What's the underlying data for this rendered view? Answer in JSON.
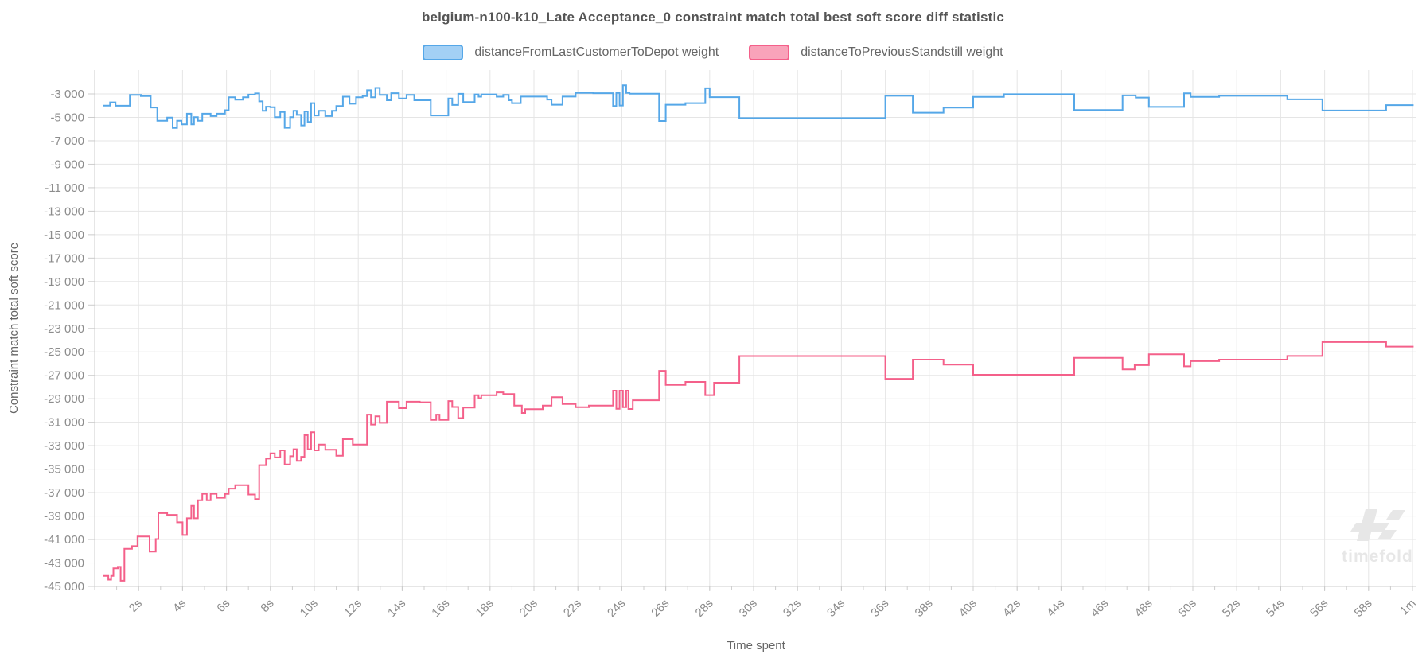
{
  "title": "belgium-n100-k10_Late Acceptance_0 constraint match total best soft score diff statistic",
  "legend": [
    {
      "label": "distanceFromLastCustomerToDepot weight",
      "fill": "#a3d0f5",
      "stroke": "#55a7e8"
    },
    {
      "label": "distanceToPreviousStandstill weight",
      "fill": "#f9a3ba",
      "stroke": "#f4608a"
    }
  ],
  "axes": {
    "y_label": "Constraint match total soft score",
    "x_label": "Time spent",
    "y_ticks": [
      {
        "v": -3000,
        "label": "-3 000"
      },
      {
        "v": -5000,
        "label": "-5 000"
      },
      {
        "v": -7000,
        "label": "-7 000"
      },
      {
        "v": -9000,
        "label": "-9 000"
      },
      {
        "v": -11000,
        "label": "-11 000"
      },
      {
        "v": -13000,
        "label": "-13 000"
      },
      {
        "v": -15000,
        "label": "-15 000"
      },
      {
        "v": -17000,
        "label": "-17 000"
      },
      {
        "v": -19000,
        "label": "-19 000"
      },
      {
        "v": -21000,
        "label": "-21 000"
      },
      {
        "v": -23000,
        "label": "-23 000"
      },
      {
        "v": -25000,
        "label": "-25 000"
      },
      {
        "v": -27000,
        "label": "-27 000"
      },
      {
        "v": -29000,
        "label": "-29 000"
      },
      {
        "v": -31000,
        "label": "-31 000"
      },
      {
        "v": -33000,
        "label": "-33 000"
      },
      {
        "v": -35000,
        "label": "-35 000"
      },
      {
        "v": -37000,
        "label": "-37 000"
      },
      {
        "v": -39000,
        "label": "-39 000"
      },
      {
        "v": -41000,
        "label": "-41 000"
      },
      {
        "v": -43000,
        "label": "-43 000"
      },
      {
        "v": -45000,
        "label": "-45 000"
      }
    ],
    "x_ticks": [
      {
        "s": 2,
        "label": "2s"
      },
      {
        "s": 4,
        "label": "4s"
      },
      {
        "s": 6,
        "label": "6s"
      },
      {
        "s": 8,
        "label": "8s"
      },
      {
        "s": 10,
        "label": "10s"
      },
      {
        "s": 12,
        "label": "12s"
      },
      {
        "s": 14,
        "label": "14s"
      },
      {
        "s": 16,
        "label": "16s"
      },
      {
        "s": 18,
        "label": "18s"
      },
      {
        "s": 20,
        "label": "20s"
      },
      {
        "s": 22,
        "label": "22s"
      },
      {
        "s": 24,
        "label": "24s"
      },
      {
        "s": 26,
        "label": "26s"
      },
      {
        "s": 28,
        "label": "28s"
      },
      {
        "s": 30,
        "label": "30s"
      },
      {
        "s": 32,
        "label": "32s"
      },
      {
        "s": 34,
        "label": "34s"
      },
      {
        "s": 36,
        "label": "36s"
      },
      {
        "s": 38,
        "label": "38s"
      },
      {
        "s": 40,
        "label": "40s"
      },
      {
        "s": 42,
        "label": "42s"
      },
      {
        "s": 44,
        "label": "44s"
      },
      {
        "s": 46,
        "label": "46s"
      },
      {
        "s": 48,
        "label": "48s"
      },
      {
        "s": 50,
        "label": "50s"
      },
      {
        "s": 52,
        "label": "52s"
      },
      {
        "s": 54,
        "label": "54s"
      },
      {
        "s": 56,
        "label": "56s"
      },
      {
        "s": 58,
        "label": "58s"
      },
      {
        "s": 60,
        "label": "1m"
      }
    ]
  },
  "watermark": "timefold",
  "colors": {
    "grid": "#e5e5e5",
    "axis": "#cccccc",
    "tick_text": "#8c8c8c",
    "axis_title": "#666666",
    "watermark": "#e7e7e7"
  },
  "chart_data": {
    "type": "line",
    "step": "after",
    "title": "belgium-n100-k10_Late Acceptance_0 constraint match total best soft score diff statistic",
    "xlabel": "Time spent",
    "ylabel": "Constraint match total soft score",
    "x_unit": "seconds",
    "xlim": [
      0,
      60.2
    ],
    "ylim": [
      -45000,
      -1000
    ],
    "y_tick_step": 2000,
    "grid": true,
    "legend_position": "top",
    "series": [
      {
        "name": "distanceFromLastCustomerToDepot weight",
        "color": "#55a7e8",
        "points": [
          [
            0.4,
            -4000
          ],
          [
            0.7,
            -3720
          ],
          [
            0.95,
            -4010
          ],
          [
            1.6,
            -3090
          ],
          [
            2.1,
            -3180
          ],
          [
            2.55,
            -4160
          ],
          [
            2.85,
            -5290
          ],
          [
            3.3,
            -5020
          ],
          [
            3.55,
            -5900
          ],
          [
            3.75,
            -5290
          ],
          [
            3.95,
            -5590
          ],
          [
            4.2,
            -4690
          ],
          [
            4.4,
            -5590
          ],
          [
            4.52,
            -4990
          ],
          [
            4.7,
            -5290
          ],
          [
            4.9,
            -4690
          ],
          [
            5.28,
            -4890
          ],
          [
            5.55,
            -4690
          ],
          [
            5.93,
            -4390
          ],
          [
            6.1,
            -3290
          ],
          [
            6.4,
            -3490
          ],
          [
            6.75,
            -3290
          ],
          [
            7.0,
            -3060
          ],
          [
            7.3,
            -2960
          ],
          [
            7.49,
            -3640
          ],
          [
            7.65,
            -4440
          ],
          [
            7.8,
            -4090
          ],
          [
            8.0,
            -4140
          ],
          [
            8.2,
            -4990
          ],
          [
            8.45,
            -4540
          ],
          [
            8.65,
            -5890
          ],
          [
            8.9,
            -4990
          ],
          [
            9.05,
            -4440
          ],
          [
            9.2,
            -4790
          ],
          [
            9.4,
            -5690
          ],
          [
            9.55,
            -4490
          ],
          [
            9.7,
            -5390
          ],
          [
            9.85,
            -3790
          ],
          [
            10.0,
            -4840
          ],
          [
            10.2,
            -4440
          ],
          [
            10.5,
            -4890
          ],
          [
            10.8,
            -4440
          ],
          [
            11.0,
            -4040
          ],
          [
            11.3,
            -3240
          ],
          [
            11.6,
            -3840
          ],
          [
            11.9,
            -3290
          ],
          [
            12.2,
            -3190
          ],
          [
            12.4,
            -2690
          ],
          [
            12.58,
            -3290
          ],
          [
            12.78,
            -2490
          ],
          [
            12.98,
            -3090
          ],
          [
            13.3,
            -3540
          ],
          [
            13.5,
            -2940
          ],
          [
            13.85,
            -3390
          ],
          [
            14.2,
            -3090
          ],
          [
            14.55,
            -3540
          ],
          [
            15.3,
            -4840
          ],
          [
            16.1,
            -3390
          ],
          [
            16.28,
            -3940
          ],
          [
            16.55,
            -2990
          ],
          [
            16.78,
            -3690
          ],
          [
            17.3,
            -3040
          ],
          [
            17.48,
            -3240
          ],
          [
            17.6,
            -3040
          ],
          [
            18.3,
            -3240
          ],
          [
            18.6,
            -3090
          ],
          [
            18.85,
            -3540
          ],
          [
            19.0,
            -3790
          ],
          [
            19.4,
            -3230
          ],
          [
            20.6,
            -3480
          ],
          [
            20.8,
            -3920
          ],
          [
            21.3,
            -3230
          ],
          [
            21.9,
            -2910
          ],
          [
            22.7,
            -2940
          ],
          [
            23.6,
            -4040
          ],
          [
            23.75,
            -2910
          ],
          [
            23.9,
            -3990
          ],
          [
            24.05,
            -2270
          ],
          [
            24.2,
            -2910
          ],
          [
            24.35,
            -2980
          ],
          [
            25.7,
            -5310
          ],
          [
            26.0,
            -3920
          ],
          [
            26.9,
            -3790
          ],
          [
            27.8,
            -2520
          ],
          [
            28.0,
            -3280
          ],
          [
            29.35,
            -5060
          ],
          [
            36.0,
            -3160
          ],
          [
            37.25,
            -4600
          ],
          [
            38.65,
            -4170
          ],
          [
            40.0,
            -3260
          ],
          [
            41.4,
            -3030
          ],
          [
            44.6,
            -4370
          ],
          [
            46.8,
            -3130
          ],
          [
            47.4,
            -3310
          ],
          [
            48.0,
            -4110
          ],
          [
            49.6,
            -2950
          ],
          [
            49.9,
            -3260
          ],
          [
            51.2,
            -3160
          ],
          [
            54.3,
            -3470
          ],
          [
            55.9,
            -4420
          ],
          [
            58.8,
            -3960
          ],
          [
            60.05,
            -3960
          ]
        ]
      },
      {
        "name": "distanceToPreviousStandstill weight",
        "color": "#f4608a",
        "points": [
          [
            0.4,
            -44100
          ],
          [
            0.62,
            -44420
          ],
          [
            0.75,
            -44100
          ],
          [
            0.85,
            -43450
          ],
          [
            1.05,
            -43330
          ],
          [
            1.18,
            -44520
          ],
          [
            1.35,
            -41800
          ],
          [
            1.7,
            -41570
          ],
          [
            1.95,
            -40740
          ],
          [
            2.5,
            -42030
          ],
          [
            2.78,
            -40960
          ],
          [
            2.9,
            -38750
          ],
          [
            3.3,
            -38900
          ],
          [
            3.75,
            -39530
          ],
          [
            4.0,
            -40620
          ],
          [
            4.2,
            -39190
          ],
          [
            4.4,
            -38130
          ],
          [
            4.52,
            -39190
          ],
          [
            4.7,
            -37650
          ],
          [
            4.9,
            -37100
          ],
          [
            5.1,
            -37650
          ],
          [
            5.28,
            -37100
          ],
          [
            5.55,
            -37440
          ],
          [
            5.93,
            -37110
          ],
          [
            6.1,
            -36660
          ],
          [
            6.4,
            -36360
          ],
          [
            7.0,
            -37160
          ],
          [
            7.3,
            -37560
          ],
          [
            7.49,
            -34660
          ],
          [
            7.8,
            -34100
          ],
          [
            8.0,
            -33650
          ],
          [
            8.2,
            -34000
          ],
          [
            8.45,
            -33400
          ],
          [
            8.65,
            -34600
          ],
          [
            8.9,
            -33900
          ],
          [
            9.05,
            -33300
          ],
          [
            9.2,
            -34300
          ],
          [
            9.4,
            -33950
          ],
          [
            9.55,
            -32100
          ],
          [
            9.7,
            -33300
          ],
          [
            9.85,
            -31850
          ],
          [
            10.0,
            -33400
          ],
          [
            10.2,
            -32900
          ],
          [
            10.5,
            -33350
          ],
          [
            11.0,
            -33850
          ],
          [
            11.3,
            -32450
          ],
          [
            11.75,
            -32900
          ],
          [
            12.4,
            -30350
          ],
          [
            12.58,
            -31200
          ],
          [
            12.78,
            -30500
          ],
          [
            12.98,
            -31050
          ],
          [
            13.3,
            -29250
          ],
          [
            13.85,
            -29800
          ],
          [
            14.2,
            -29250
          ],
          [
            14.8,
            -29300
          ],
          [
            15.3,
            -30800
          ],
          [
            15.55,
            -30350
          ],
          [
            15.7,
            -30800
          ],
          [
            16.1,
            -29200
          ],
          [
            16.28,
            -29700
          ],
          [
            16.55,
            -30650
          ],
          [
            16.78,
            -29750
          ],
          [
            17.3,
            -28700
          ],
          [
            17.48,
            -28950
          ],
          [
            17.6,
            -28700
          ],
          [
            18.3,
            -28450
          ],
          [
            18.6,
            -28600
          ],
          [
            19.1,
            -29580
          ],
          [
            19.45,
            -30210
          ],
          [
            19.6,
            -29890
          ],
          [
            20.4,
            -29580
          ],
          [
            20.8,
            -28870
          ],
          [
            21.3,
            -29450
          ],
          [
            21.9,
            -29710
          ],
          [
            22.5,
            -29580
          ],
          [
            23.6,
            -28310
          ],
          [
            23.75,
            -29850
          ],
          [
            23.9,
            -28310
          ],
          [
            24.05,
            -29720
          ],
          [
            24.2,
            -28310
          ],
          [
            24.3,
            -29870
          ],
          [
            24.5,
            -29130
          ],
          [
            25.7,
            -26620
          ],
          [
            26.0,
            -27810
          ],
          [
            26.9,
            -27560
          ],
          [
            27.8,
            -28690
          ],
          [
            28.2,
            -27630
          ],
          [
            29.35,
            -25360
          ],
          [
            36.0,
            -27300
          ],
          [
            37.25,
            -25660
          ],
          [
            38.65,
            -26090
          ],
          [
            40.0,
            -26950
          ],
          [
            44.6,
            -25510
          ],
          [
            46.8,
            -26490
          ],
          [
            47.35,
            -26130
          ],
          [
            48.0,
            -25200
          ],
          [
            49.6,
            -26230
          ],
          [
            49.9,
            -25790
          ],
          [
            51.2,
            -25660
          ],
          [
            54.3,
            -25350
          ],
          [
            55.9,
            -24160
          ],
          [
            58.8,
            -24550
          ],
          [
            60.05,
            -24550
          ]
        ]
      }
    ]
  }
}
